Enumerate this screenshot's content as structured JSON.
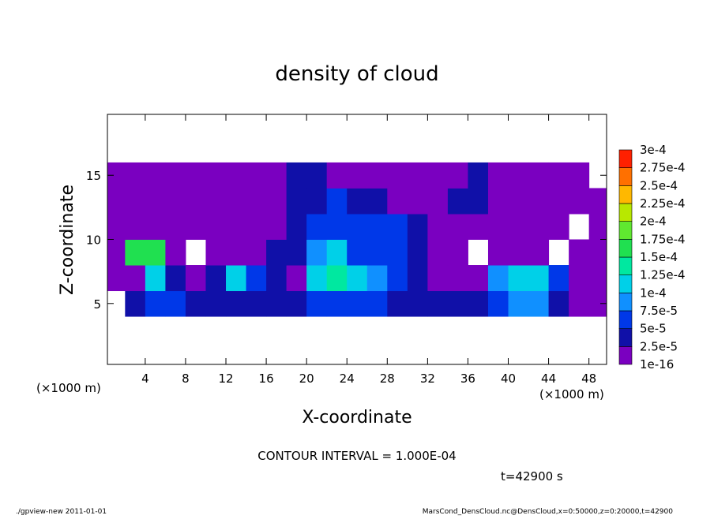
{
  "chart_data": {
    "type": "contour",
    "title": "density of cloud",
    "x_label": "X-coordinate",
    "y_label": "Z-coordinate",
    "x_unit": "(×1000 m)",
    "y_unit": "(×1000 m)",
    "annotation": "CONTOUR INTERVAL = 1.000E-04",
    "time_label": "t=42900 s",
    "footer_left": "./gpview-new   2011-01-01",
    "footer_right": "MarsCond_DensCloud.nc@DensCloud,x=0:50000,z=0:20000,t=42900",
    "xlim": [
      0.25,
      49.75
    ],
    "ylim": [
      0.25,
      19.75
    ],
    "xticks": [
      4,
      8,
      12,
      16,
      20,
      24,
      28,
      32,
      36,
      40,
      44,
      48
    ],
    "yticks": [
      5,
      10,
      15
    ],
    "x": [
      1,
      3,
      5,
      7,
      9,
      11,
      13,
      15,
      17,
      19,
      21,
      23,
      25,
      27,
      29,
      31,
      33,
      35,
      37,
      39,
      41,
      43,
      45,
      47,
      49
    ],
    "y": [
      1,
      3,
      5,
      7,
      9,
      11,
      13,
      15,
      17,
      19
    ],
    "z": [
      [
        null,
        null,
        null,
        null,
        null,
        null,
        null,
        null,
        null,
        null,
        null,
        null,
        null,
        null,
        null,
        null,
        null,
        null,
        null,
        null,
        null,
        null,
        null,
        null,
        null
      ],
      [
        null,
        null,
        null,
        null,
        null,
        null,
        null,
        null,
        null,
        null,
        null,
        null,
        null,
        null,
        null,
        null,
        null,
        null,
        null,
        null,
        null,
        null,
        null,
        null,
        null
      ],
      [
        null,
        3e-05,
        5e-05,
        5e-05,
        3e-05,
        3e-05,
        4e-05,
        3e-05,
        3e-05,
        3e-05,
        6e-05,
        6e-05,
        6e-05,
        5e-05,
        4e-05,
        3e-05,
        3e-05,
        3e-05,
        3e-05,
        6e-05,
        8e-05,
        8e-05,
        4e-05,
        2e-05,
        1e-05
      ],
      [
        1e-05,
        2e-05,
        0.00012,
        3e-05,
        1e-05,
        4e-05,
        0.00011,
        6e-05,
        3e-05,
        2e-05,
        0.0001,
        0.00013,
        0.00012,
        9e-05,
        7e-05,
        4e-05,
        2e-05,
        1e-05,
        2e-05,
        8e-05,
        0.00012,
        0.00011,
        5e-05,
        1e-05,
        1e-05
      ],
      [
        1e-05,
        0.00016,
        0.00017,
        2e-05,
        null,
        1e-05,
        2e-05,
        2e-05,
        3e-05,
        4e-05,
        8e-05,
        0.00012,
        7e-05,
        6e-05,
        5e-05,
        4e-05,
        2e-05,
        1e-05,
        null,
        1e-05,
        2e-05,
        1e-05,
        null,
        1e-05,
        1e-05
      ],
      [
        1e-05,
        2e-05,
        1e-05,
        1e-05,
        1e-05,
        1e-05,
        1e-05,
        1e-05,
        1e-05,
        4e-05,
        5e-05,
        6e-05,
        5e-05,
        6e-05,
        5e-05,
        3e-05,
        1e-05,
        1e-05,
        1e-05,
        1e-05,
        1e-05,
        1e-05,
        1e-05,
        null,
        1e-05
      ],
      [
        1e-05,
        1e-05,
        1e-05,
        2e-05,
        1e-05,
        1e-05,
        1e-05,
        1e-05,
        1e-05,
        3e-05,
        4e-05,
        5e-05,
        4e-05,
        3e-05,
        1e-05,
        1e-05,
        1e-05,
        3e-05,
        3e-05,
        1e-05,
        1e-05,
        1e-05,
        1e-05,
        1e-05,
        1e-05
      ],
      [
        1e-05,
        1e-05,
        1e-05,
        1e-05,
        1e-05,
        1e-05,
        1e-05,
        1e-05,
        1e-05,
        3e-05,
        3e-05,
        1e-05,
        1e-05,
        1e-05,
        1e-05,
        1e-05,
        1e-05,
        1e-05,
        3e-05,
        1e-05,
        1e-05,
        1e-05,
        1e-05,
        1e-05,
        null
      ],
      [
        null,
        null,
        null,
        null,
        null,
        null,
        null,
        null,
        null,
        null,
        null,
        null,
        null,
        null,
        null,
        null,
        null,
        null,
        null,
        null,
        null,
        null,
        null,
        null,
        null
      ],
      [
        null,
        null,
        null,
        null,
        null,
        null,
        null,
        null,
        null,
        null,
        null,
        null,
        null,
        null,
        null,
        null,
        null,
        null,
        null,
        null,
        null,
        null,
        null,
        null,
        null
      ]
    ],
    "levels": [
      {
        "value": 1e-16,
        "label": "1e-16"
      },
      {
        "value": 2.5e-05,
        "label": "2.5e-5"
      },
      {
        "value": 5e-05,
        "label": "5e-5"
      },
      {
        "value": 7.5e-05,
        "label": "7.5e-5"
      },
      {
        "value": 0.0001,
        "label": "1e-4"
      },
      {
        "value": 0.000125,
        "label": "1.25e-4"
      },
      {
        "value": 0.00015,
        "label": "1.5e-4"
      },
      {
        "value": 0.000175,
        "label": "1.75e-4"
      },
      {
        "value": 0.0002,
        "label": "2e-4"
      },
      {
        "value": 0.000225,
        "label": "2.25e-4"
      },
      {
        "value": 0.00025,
        "label": "2.5e-4"
      },
      {
        "value": 0.000275,
        "label": "2.75e-4"
      },
      {
        "value": 0.0003,
        "label": "3e-4"
      }
    ],
    "colors": [
      "#7a00c0",
      "#1010a8",
      "#0038e8",
      "#1090ff",
      "#00d0e8",
      "#00e8a0",
      "#20e050",
      "#60e830",
      "#b8e800",
      "#ffb800",
      "#ff7000",
      "#ff2000"
    ],
    "top_color": "#ff8c8c"
  }
}
